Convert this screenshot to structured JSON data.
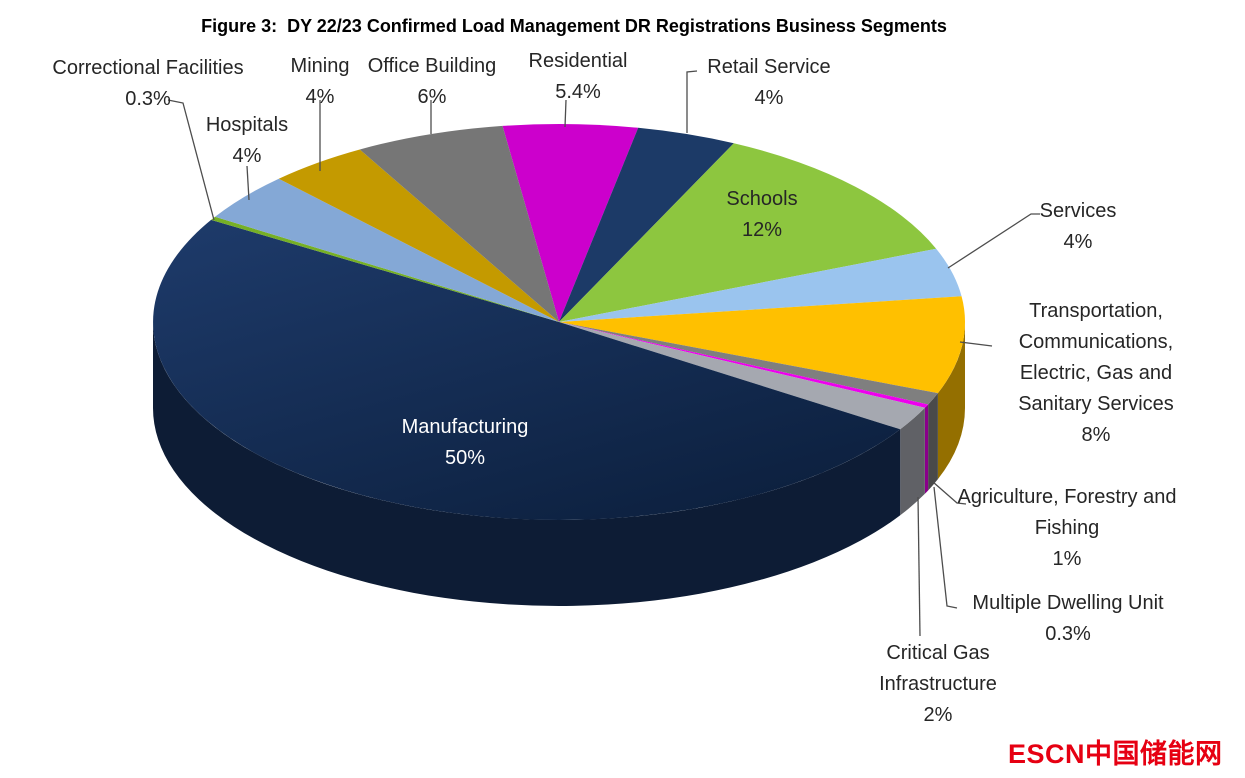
{
  "watermark": {
    "text": "ESCN中国储能网",
    "color": "#E60012"
  },
  "chart_data": {
    "type": "pie",
    "style": "3d-pie",
    "title": "Figure 3:  DY 22/23 Confirmed Load Management DR Registrations Business Segments",
    "unit": "%",
    "start_angle_deg": 98,
    "direction": "clockwise",
    "legend_position": "outside-callouts",
    "slices": [
      {
        "key": "residential",
        "label": "Residential",
        "value": 5.4,
        "pct_label": "5.4%",
        "color": "#CC00CC"
      },
      {
        "key": "retail-service",
        "label": "Retail Service",
        "value": 4,
        "pct_label": "4%",
        "color": "#1C3A67"
      },
      {
        "key": "schools",
        "label": "Schools",
        "value": 12,
        "pct_label": "12%",
        "color": "#8DC63F"
      },
      {
        "key": "services",
        "label": "Services",
        "value": 4,
        "pct_label": "4%",
        "color": "#9AC4EE"
      },
      {
        "key": "transportation",
        "label": "Transportation, Communications, Electric, Gas and Sanitary Services",
        "value": 8,
        "pct_label": "8%",
        "color": "#FFC000"
      },
      {
        "key": "agriculture",
        "label": "Agriculture, Forestry and Fishing",
        "value": 1,
        "pct_label": "1%",
        "color": "#7F7F7F"
      },
      {
        "key": "multiple-dwelling-unit",
        "label": "Multiple Dwelling Unit",
        "value": 0.3,
        "pct_label": "0.3%",
        "color": "#EE00EE"
      },
      {
        "key": "critical-gas",
        "label": "Critical Gas Infrastructure",
        "value": 2,
        "pct_label": "2%",
        "color": "#A5A8B0"
      },
      {
        "key": "manufacturing",
        "label": "Manufacturing",
        "value": 50,
        "pct_label": "50%",
        "color": "#16315C"
      },
      {
        "key": "correctional-facilities",
        "label": "Correctional Facilities",
        "value": 0.3,
        "pct_label": "0.3%",
        "color": "#76B025"
      },
      {
        "key": "hospitals",
        "label": "Hospitals",
        "value": 4,
        "pct_label": "4%",
        "color": "#84A8D6"
      },
      {
        "key": "mining",
        "label": "Mining",
        "value": 4,
        "pct_label": "4%",
        "color": "#C49A00"
      },
      {
        "key": "office-building",
        "label": "Office Building",
        "value": 6,
        "pct_label": "6%",
        "color": "#767676"
      }
    ]
  }
}
